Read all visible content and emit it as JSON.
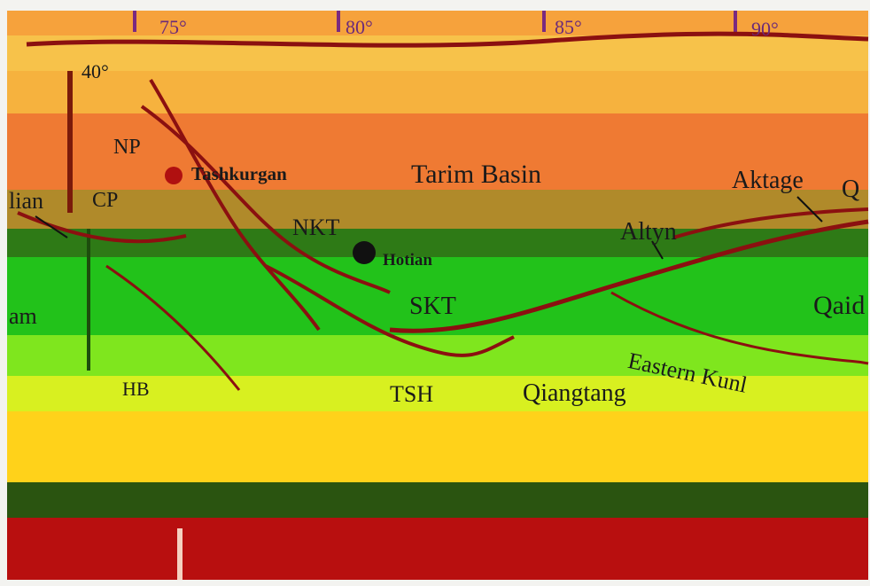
{
  "map": {
    "longitude_ticks": [
      "75°",
      "80°",
      "85°",
      "90°"
    ],
    "latitude_ticks": [
      "40°"
    ],
    "places": {
      "tashkurgan": "Tashkurgan",
      "hotian": "Hotian"
    },
    "regions": {
      "tarim_basin": "Tarim Basin",
      "aktage": "Aktage",
      "altyn": "Altyn",
      "qiangtang": "Qiangtang",
      "east_kunlun": "Eastern Kunl",
      "qaidam": "Qaid",
      "q_edge": "Q",
      "alai_edge": "lian",
      "pamir_edge": "am"
    },
    "fault_abbr": {
      "np": "NP",
      "cp": "CP",
      "nkt": "NKT",
      "skt": "SKT",
      "tsh": "TSH",
      "hb": "HB"
    },
    "colors": {
      "city": "#b01010",
      "fault": "#8b1010",
      "band_orange": "#f07830",
      "band_green": "#22c21a",
      "band_yellow": "#ffd21a",
      "band_red": "#b80f0f"
    }
  }
}
